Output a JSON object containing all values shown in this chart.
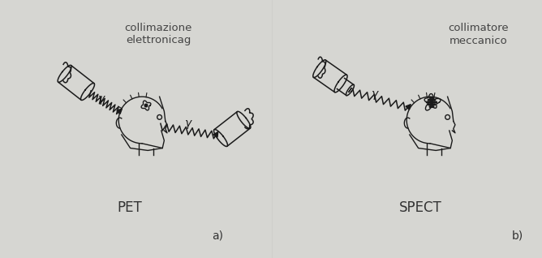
{
  "bg_color": "#d6d6d2",
  "line_color": "#1a1a1a",
  "text_color": "#1a1a1a",
  "title_left": "PET",
  "title_right": "SPECT",
  "label_a": "a)",
  "label_b": "b)",
  "label_pet_top": "collimazione\nelettronicag",
  "label_spect_top": "collimatore\nmeccanico",
  "gamma_left": "γ",
  "gamma_right": "γ",
  "gamma_spect": "γ",
  "figsize": [
    6.68,
    3.18
  ],
  "dpi": 100
}
